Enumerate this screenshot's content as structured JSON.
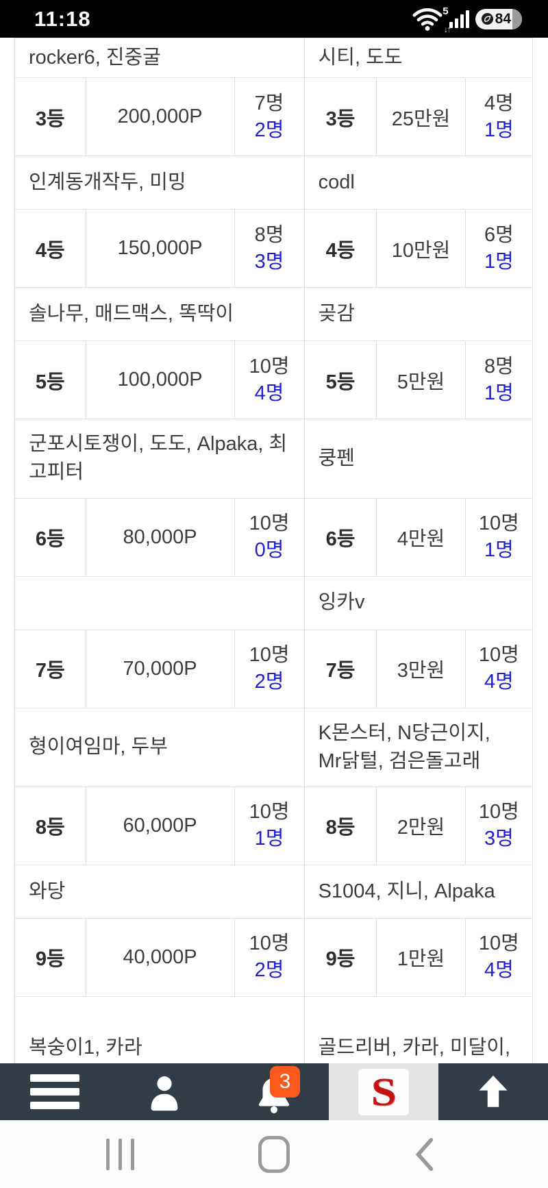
{
  "status_bar": {
    "time": "11:18",
    "wifi_label": "5",
    "battery_percent": "84"
  },
  "table": {
    "sections": [
      {
        "left_names": "rocker6, 진중굴",
        "right_names": "시티, 도도",
        "left": {
          "rank": "3등",
          "prize": "200,000P",
          "total": "7명",
          "current": "2명"
        },
        "right": {
          "rank": "3등",
          "prize": "25만원",
          "total": "4명",
          "current": "1명"
        }
      },
      {
        "left_names": "인계동개작두, 미밍",
        "right_names": "codl",
        "left": {
          "rank": "4등",
          "prize": "150,000P",
          "total": "8명",
          "current": "3명"
        },
        "right": {
          "rank": "4등",
          "prize": "10만원",
          "total": "6명",
          "current": "1명"
        }
      },
      {
        "left_names": "솔나무, 매드맥스, 똑딱이",
        "right_names": "곶감",
        "left": {
          "rank": "5등",
          "prize": "100,000P",
          "total": "10명",
          "current": "4명"
        },
        "right": {
          "rank": "5등",
          "prize": "5만원",
          "total": "8명",
          "current": "1명"
        }
      },
      {
        "left_names": "군포시토쟁이, 도도, Alpaka, 최고피터",
        "right_names": "쿵펜",
        "left": {
          "rank": "6등",
          "prize": "80,000P",
          "total": "10명",
          "current": "0명"
        },
        "right": {
          "rank": "6등",
          "prize": "4만원",
          "total": "10명",
          "current": "1명"
        }
      },
      {
        "left_names": "",
        "right_names": "잉카v",
        "left": {
          "rank": "7등",
          "prize": "70,000P",
          "total": "10명",
          "current": "2명"
        },
        "right": {
          "rank": "7등",
          "prize": "3만원",
          "total": "10명",
          "current": "4명"
        }
      },
      {
        "left_names": "형이여임마, 두부",
        "right_names": "K몬스터, N당근이지, Mr닭털, 검은돌고래",
        "left": {
          "rank": "8등",
          "prize": "60,000P",
          "total": "10명",
          "current": "1명"
        },
        "right": {
          "rank": "8등",
          "prize": "2만원",
          "total": "10명",
          "current": "3명"
        }
      },
      {
        "left_names": "와당",
        "right_names": "S1004, 지니, Alpaka",
        "left": {
          "rank": "9등",
          "prize": "40,000P",
          "total": "10명",
          "current": "2명"
        },
        "right": {
          "rank": "9등",
          "prize": "1만원",
          "total": "10명",
          "current": "4명"
        }
      },
      {
        "left_names": "복숭이1, 카라",
        "right_names": "골드리버, 카라, 미달이,"
      }
    ]
  },
  "tab_bar": {
    "notification_count": "3",
    "logo_letter": "S"
  },
  "colors": {
    "accent_blue": "#2020cc",
    "badge_orange": "#ff5a1e",
    "navbar_bg": "#333d47",
    "status_bg": "#000000"
  }
}
